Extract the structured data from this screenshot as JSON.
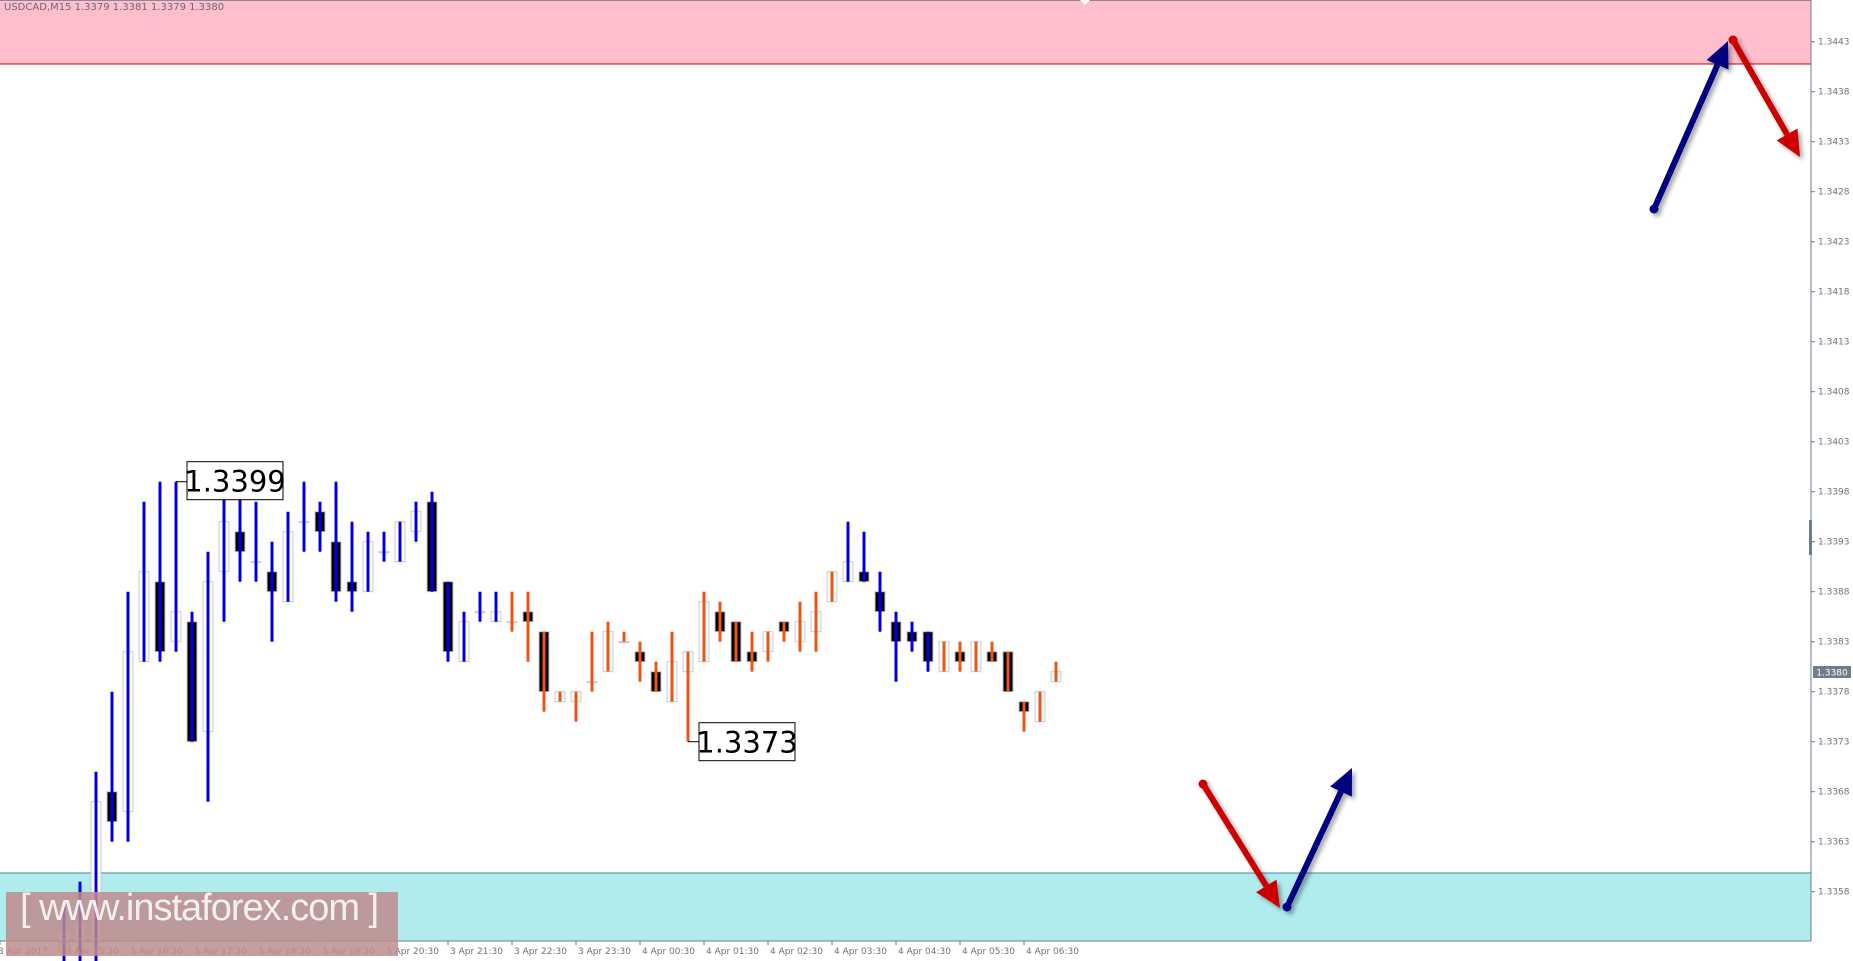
{
  "header": {
    "symbol_line": "USDCAD,M15  1.3379 1.3381 1.3379 1.3380"
  },
  "watermark": "[ www.instaforex.com ]",
  "colors": {
    "resistance_zone": "#ffbecb",
    "resistance_line": "#cc0000",
    "support_zone": "#b0ecee",
    "support_line": "#4a7fb0",
    "wick_blue": "#0000e6",
    "wick_orange": "#ee5511",
    "arrow_up": "#000080",
    "arrow_down": "#cc0000",
    "axis": "#6e7c8c",
    "current_price_bg": "#6e7c8c"
  },
  "chart_data": {
    "type": "candlestick",
    "symbol": "USDCAD",
    "timeframe": "M15",
    "ylim": [
      1.3351,
      1.3447
    ],
    "y_ticks": [
      "1.3443",
      "1.3438",
      "1.3433",
      "1.3428",
      "1.3423",
      "1.3418",
      "1.3413",
      "1.3408",
      "1.3403",
      "1.3398",
      "1.3393",
      "1.3388",
      "1.3383",
      "1.3378",
      "1.3373",
      "1.3368",
      "1.3363",
      "1.3358"
    ],
    "x_tick_labels": [
      "3 Apr 2017",
      "3 Apr 15:30",
      "3 Apr 16:30",
      "3 Apr 17:30",
      "3 Apr 18:30",
      "3 Apr 19:30",
      "3 Apr 20:30",
      "3 Apr 21:30",
      "3 Apr 22:30",
      "3 Apr 23:30",
      "4 Apr 00:30",
      "4 Apr 01:30",
      "4 Apr 02:30",
      "4 Apr 03:30",
      "4 Apr 04:30",
      "4 Apr 05:30",
      "4 Apr 06:30"
    ],
    "current_price": "1.3380",
    "resistance_zone": [
      1.34407,
      1.3447
    ],
    "support_zone": [
      1.3351,
      1.336
    ],
    "annotations": [
      {
        "text": "1.3399",
        "bar": 7,
        "price": 1.3399
      },
      {
        "text": "1.3373",
        "bar": 39,
        "price": 1.3373
      }
    ],
    "bars": [
      {
        "o": 1.3352,
        "h": 1.3357,
        "l": 1.335,
        "c": 1.3354,
        "w": "blue"
      },
      {
        "o": 1.3353,
        "h": 1.3359,
        "l": 1.3351,
        "c": 1.3355,
        "w": "blue"
      },
      {
        "o": 1.3353,
        "h": 1.337,
        "l": 1.3351,
        "c": 1.3367,
        "w": "blue"
      },
      {
        "o": 1.3368,
        "h": 1.3378,
        "l": 1.3363,
        "c": 1.3365,
        "w": "blue"
      },
      {
        "o": 1.3366,
        "h": 1.3388,
        "l": 1.3363,
        "c": 1.3382,
        "w": "blue"
      },
      {
        "o": 1.3381,
        "h": 1.3397,
        "l": 1.3381,
        "c": 1.339,
        "w": "blue"
      },
      {
        "o": 1.3389,
        "h": 1.3399,
        "l": 1.3381,
        "c": 1.3382,
        "w": "blue"
      },
      {
        "o": 1.3383,
        "h": 1.3399,
        "l": 1.3382,
        "c": 1.3386,
        "w": "blue"
      },
      {
        "o": 1.3385,
        "h": 1.3386,
        "l": 1.3373,
        "c": 1.3373,
        "w": "blue"
      },
      {
        "o": 1.3374,
        "h": 1.3392,
        "l": 1.3367,
        "c": 1.3389,
        "w": "blue"
      },
      {
        "o": 1.339,
        "h": 1.3398,
        "l": 1.3385,
        "c": 1.3395,
        "w": "blue"
      },
      {
        "o": 1.3394,
        "h": 1.3398,
        "l": 1.3389,
        "c": 1.3392,
        "w": "blue"
      },
      {
        "o": 1.3391,
        "h": 1.3397,
        "l": 1.3389,
        "c": 1.3391,
        "w": "blue"
      },
      {
        "o": 1.339,
        "h": 1.3393,
        "l": 1.3383,
        "c": 1.3388,
        "w": "blue"
      },
      {
        "o": 1.3387,
        "h": 1.3396,
        "l": 1.3387,
        "c": 1.3394,
        "w": "blue"
      },
      {
        "o": 1.3395,
        "h": 1.3399,
        "l": 1.3392,
        "c": 1.3395,
        "w": "blue"
      },
      {
        "o": 1.3396,
        "h": 1.3397,
        "l": 1.3392,
        "c": 1.3394,
        "w": "blue"
      },
      {
        "o": 1.3393,
        "h": 1.3399,
        "l": 1.3387,
        "c": 1.3388,
        "w": "blue"
      },
      {
        "o": 1.3389,
        "h": 1.3395,
        "l": 1.3386,
        "c": 1.3388,
        "w": "blue"
      },
      {
        "o": 1.3388,
        "h": 1.3394,
        "l": 1.3388,
        "c": 1.3393,
        "w": "blue"
      },
      {
        "o": 1.3392,
        "h": 1.3394,
        "l": 1.3391,
        "c": 1.3392,
        "w": "blue"
      },
      {
        "o": 1.3391,
        "h": 1.3395,
        "l": 1.3391,
        "c": 1.3395,
        "w": "blue"
      },
      {
        "o": 1.3394,
        "h": 1.3397,
        "l": 1.3393,
        "c": 1.3396,
        "w": "blue"
      },
      {
        "o": 1.3397,
        "h": 1.3398,
        "l": 1.3388,
        "c": 1.3388,
        "w": "blue"
      },
      {
        "o": 1.3389,
        "h": 1.3389,
        "l": 1.3381,
        "c": 1.3382,
        "w": "blue"
      },
      {
        "o": 1.3381,
        "h": 1.3386,
        "l": 1.3381,
        "c": 1.3385,
        "w": "blue"
      },
      {
        "o": 1.3386,
        "h": 1.3388,
        "l": 1.3385,
        "c": 1.3386,
        "w": "blue"
      },
      {
        "o": 1.3385,
        "h": 1.3388,
        "l": 1.3385,
        "c": 1.3386,
        "w": "blue"
      },
      {
        "o": 1.3385,
        "h": 1.3388,
        "l": 1.3384,
        "c": 1.3385,
        "w": "orange"
      },
      {
        "o": 1.3386,
        "h": 1.3388,
        "l": 1.3381,
        "c": 1.3385,
        "w": "orange"
      },
      {
        "o": 1.3384,
        "h": 1.3384,
        "l": 1.3376,
        "c": 1.3378,
        "w": "orange"
      },
      {
        "o": 1.3377,
        "h": 1.3378,
        "l": 1.3377,
        "c": 1.3378,
        "w": "orange"
      },
      {
        "o": 1.3377,
        "h": 1.3378,
        "l": 1.3375,
        "c": 1.3378,
        "w": "orange"
      },
      {
        "o": 1.3379,
        "h": 1.3384,
        "l": 1.3378,
        "c": 1.3379,
        "w": "orange"
      },
      {
        "o": 1.338,
        "h": 1.3385,
        "l": 1.338,
        "c": 1.3384,
        "w": "orange"
      },
      {
        "o": 1.3383,
        "h": 1.3384,
        "l": 1.3383,
        "c": 1.3383,
        "w": "orange"
      },
      {
        "o": 1.3382,
        "h": 1.3383,
        "l": 1.3379,
        "c": 1.3381,
        "w": "orange"
      },
      {
        "o": 1.338,
        "h": 1.3381,
        "l": 1.3378,
        "c": 1.3378,
        "w": "orange"
      },
      {
        "o": 1.3377,
        "h": 1.3384,
        "l": 1.3377,
        "c": 1.3381,
        "w": "orange"
      },
      {
        "o": 1.338,
        "h": 1.3382,
        "l": 1.3373,
        "c": 1.3382,
        "w": "orange"
      },
      {
        "o": 1.3381,
        "h": 1.3388,
        "l": 1.3381,
        "c": 1.3387,
        "w": "orange"
      },
      {
        "o": 1.3386,
        "h": 1.3387,
        "l": 1.3383,
        "c": 1.3384,
        "w": "orange"
      },
      {
        "o": 1.3385,
        "h": 1.3385,
        "l": 1.3381,
        "c": 1.3381,
        "w": "orange"
      },
      {
        "o": 1.3382,
        "h": 1.3384,
        "l": 1.338,
        "c": 1.3381,
        "w": "orange"
      },
      {
        "o": 1.3382,
        "h": 1.3384,
        "l": 1.3381,
        "c": 1.3384,
        "w": "orange"
      },
      {
        "o": 1.3385,
        "h": 1.3385,
        "l": 1.3383,
        "c": 1.3384,
        "w": "orange"
      },
      {
        "o": 1.3383,
        "h": 1.3387,
        "l": 1.3382,
        "c": 1.3385,
        "w": "orange"
      },
      {
        "o": 1.3384,
        "h": 1.3388,
        "l": 1.3382,
        "c": 1.3386,
        "w": "orange"
      },
      {
        "o": 1.3387,
        "h": 1.339,
        "l": 1.3387,
        "c": 1.339,
        "w": "orange"
      },
      {
        "o": 1.3389,
        "h": 1.3395,
        "l": 1.3389,
        "c": 1.3391,
        "w": "blue"
      },
      {
        "o": 1.339,
        "h": 1.3394,
        "l": 1.3389,
        "c": 1.3389,
        "w": "blue"
      },
      {
        "o": 1.3388,
        "h": 1.339,
        "l": 1.3384,
        "c": 1.3386,
        "w": "blue"
      },
      {
        "o": 1.3385,
        "h": 1.3386,
        "l": 1.3379,
        "c": 1.3383,
        "w": "blue"
      },
      {
        "o": 1.3384,
        "h": 1.3385,
        "l": 1.3382,
        "c": 1.3383,
        "w": "blue"
      },
      {
        "o": 1.3384,
        "h": 1.3384,
        "l": 1.338,
        "c": 1.3381,
        "w": "blue"
      },
      {
        "o": 1.338,
        "h": 1.3383,
        "l": 1.338,
        "c": 1.3383,
        "w": "orange"
      },
      {
        "o": 1.3382,
        "h": 1.3383,
        "l": 1.338,
        "c": 1.3381,
        "w": "orange"
      },
      {
        "o": 1.338,
        "h": 1.3383,
        "l": 1.338,
        "c": 1.3383,
        "w": "orange"
      },
      {
        "o": 1.3382,
        "h": 1.3383,
        "l": 1.3381,
        "c": 1.3381,
        "w": "orange"
      },
      {
        "o": 1.3382,
        "h": 1.3382,
        "l": 1.3378,
        "c": 1.3378,
        "w": "orange"
      },
      {
        "o": 1.3377,
        "h": 1.3377,
        "l": 1.3374,
        "c": 1.3376,
        "w": "orange"
      },
      {
        "o": 1.3375,
        "h": 1.3378,
        "l": 1.3375,
        "c": 1.3378,
        "w": "orange"
      },
      {
        "o": 1.3379,
        "h": 1.3381,
        "l": 1.3379,
        "c": 1.338,
        "w": "orange"
      }
    ],
    "forecast_arrows": [
      {
        "direction": "up",
        "from_price": 1.3426,
        "to_price": 1.3443,
        "color": "arrow_up"
      },
      {
        "direction": "down",
        "from_price": 1.3443,
        "to_price": 1.3431,
        "color": "arrow_down"
      },
      {
        "direction": "down",
        "from_price": 1.3369,
        "to_price": 1.3356,
        "color": "arrow_down"
      },
      {
        "direction": "up",
        "from_price": 1.3356,
        "to_price": 1.337,
        "color": "arrow_up"
      }
    ]
  }
}
